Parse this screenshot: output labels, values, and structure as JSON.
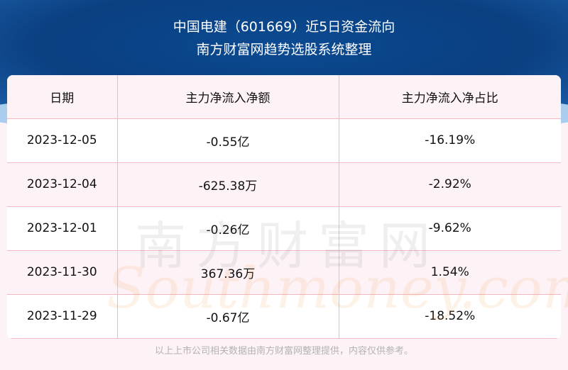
{
  "header": {
    "title": "中国电建（601669）近5日资金流向",
    "subtitle": "南方财富网趋势选股系统整理"
  },
  "table": {
    "columns": [
      "日期",
      "主力净流入净额",
      "主力净流入净占比"
    ],
    "rows": [
      [
        "2023-12-05",
        "-0.55亿",
        "-16.19%"
      ],
      [
        "2023-12-04",
        "-625.38万",
        "-2.92%"
      ],
      [
        "2023-12-01",
        "-0.26亿",
        "-9.62%"
      ],
      [
        "2023-11-30",
        "367.36万",
        "1.54%"
      ],
      [
        "2023-11-29",
        "-0.67亿",
        "-18.52%"
      ]
    ]
  },
  "watermark": {
    "cn": "南方财富网",
    "en": "Southmoney.com"
  },
  "footer": "以上上市公司相关数据由南方财富网整理提供，内容仅供参考。"
}
